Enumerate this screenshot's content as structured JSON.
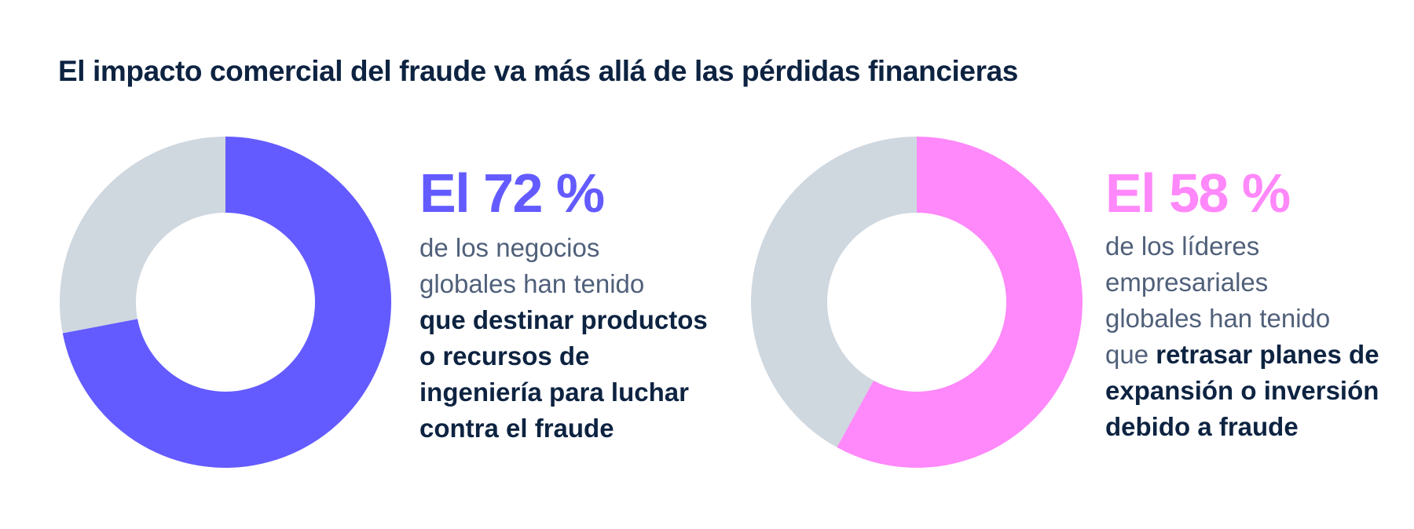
{
  "title": "El impacto comercial del fraude va más allá de las pérdidas financieras",
  "colors": {
    "remainder": "#cfd7df",
    "title": "#0d2341",
    "muted": "#50607a"
  },
  "chart_data": [
    {
      "type": "pie",
      "variant": "donut",
      "slices": [
        {
          "value": 72,
          "color": "#635bff"
        },
        {
          "value": 28,
          "color": "#cfd7df"
        }
      ],
      "stat": "El 72 %",
      "description": {
        "line1": "de los negocios",
        "line2": "globales han tenido",
        "line3": "que destinar productos",
        "line4": "o recursos de",
        "line5": "ingeniería para luchar",
        "line6": "contra el fraude"
      }
    },
    {
      "type": "pie",
      "variant": "donut",
      "slices": [
        {
          "value": 58,
          "color": "#ff88fa"
        },
        {
          "value": 42,
          "color": "#cfd7df"
        }
      ],
      "stat": "El 58 %",
      "description": {
        "line1": "de los líderes",
        "line2": "empresariales",
        "line3": "globales han tenido",
        "line4a": "que",
        "line4b": "retrasar planes de",
        "line5": "expansión o inversión",
        "line6": "debido a fraude"
      }
    }
  ]
}
